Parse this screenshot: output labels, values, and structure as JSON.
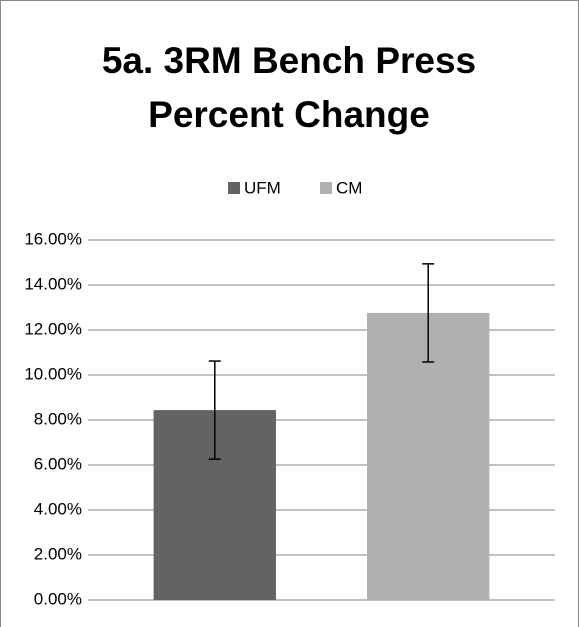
{
  "chart_data": {
    "type": "bar",
    "title": "5a. 3RM Bench Press Percent Change",
    "categories": [
      null
    ],
    "series": [
      {
        "name": "UFM",
        "color": "#636363",
        "values": [
          8.44
        ],
        "errors": [
          2.18
        ]
      },
      {
        "name": "CM",
        "color": "#b0b0b0",
        "values": [
          12.76
        ],
        "errors": [
          2.18
        ]
      }
    ],
    "ylim": [
      0,
      16
    ],
    "yticks": [
      {
        "value": 0,
        "label": "0.00%"
      },
      {
        "value": 2,
        "label": "2.00%"
      },
      {
        "value": 4,
        "label": "4.00%"
      },
      {
        "value": 6,
        "label": "6.00%"
      },
      {
        "value": 8,
        "label": "8.00%"
      },
      {
        "value": 10,
        "label": "10.00%"
      },
      {
        "value": 12,
        "label": "12.00%"
      },
      {
        "value": 14,
        "label": "14.00%"
      },
      {
        "value": 16,
        "label": "16.00%"
      }
    ],
    "grid": true,
    "legend": "top"
  }
}
